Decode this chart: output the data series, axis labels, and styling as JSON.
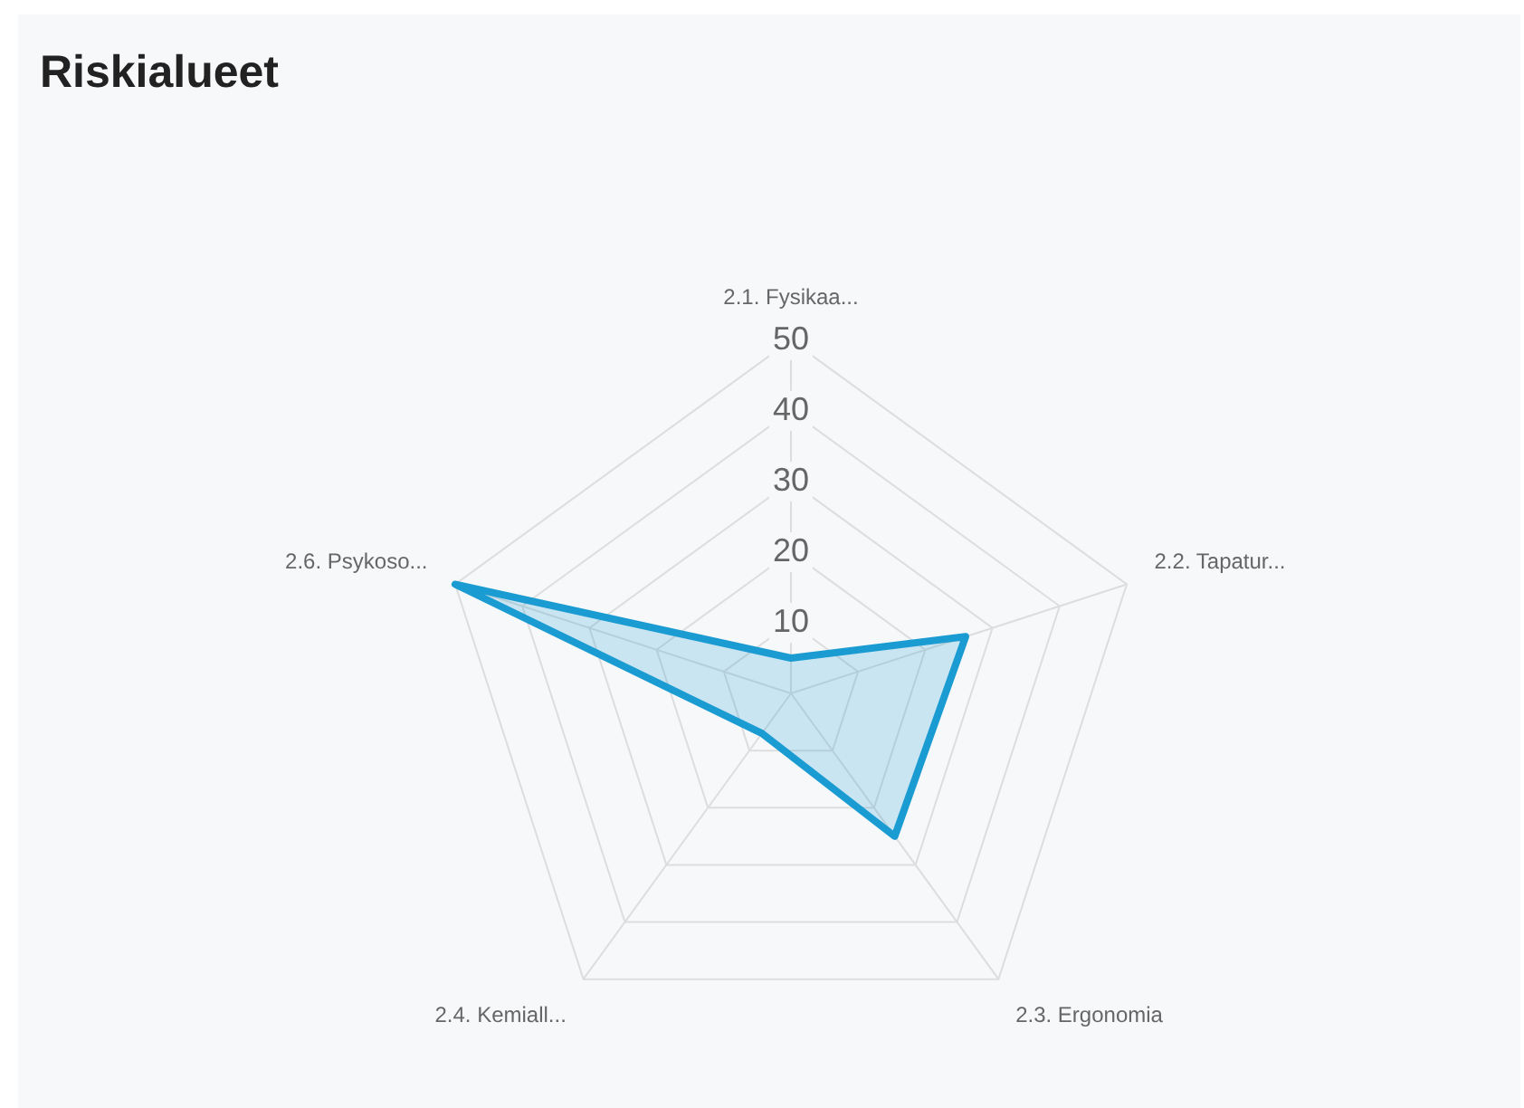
{
  "chart_data": {
    "type": "radar",
    "title": "Riskialueet",
    "categories": [
      "2.1. Fysikaa...",
      "2.2. Tapatur...",
      "2.3. Ergonomia",
      "2.4. Kemiall...",
      "2.6. Psykoso..."
    ],
    "series": [
      {
        "color": "#1a9bd1",
        "values": [
          5,
          26,
          25,
          7,
          50
        ]
      }
    ],
    "ylim": [
      0,
      50
    ],
    "yticks": [
      10,
      20,
      30,
      40,
      50
    ],
    "grid": true,
    "legend": false,
    "marker": "none"
  }
}
